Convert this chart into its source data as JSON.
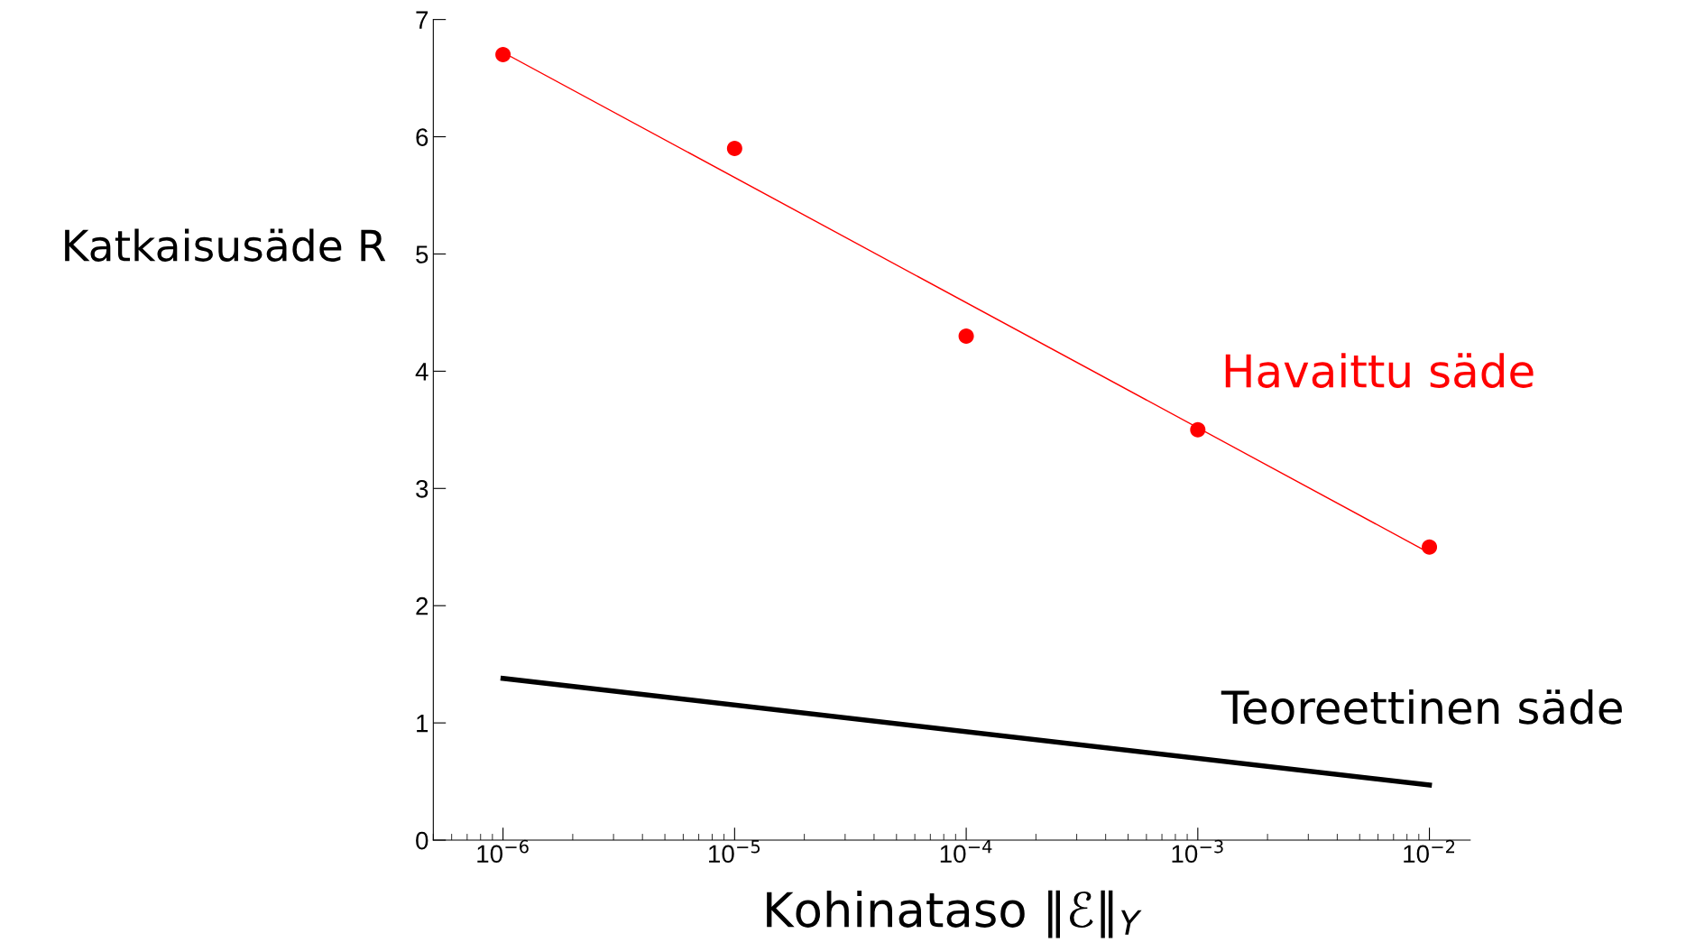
{
  "chart_data": {
    "type": "scatter",
    "xlabel": "Kohinataso ‖ℰ‖$_{Y}$",
    "ylabel": "Katkaisusäde R",
    "log": "x",
    "xlim": [
      5e-07,
      0.015
    ],
    "ylim": [
      0,
      7
    ],
    "xticks": [
      {
        "value": 1e-06,
        "label": "10$^{−6}$"
      },
      {
        "value": 1e-05,
        "label": "10$^{−5}$"
      },
      {
        "value": 0.0001,
        "label": "10$^{−4}$"
      },
      {
        "value": 0.001,
        "label": "10$^{−3}$"
      },
      {
        "value": 0.01,
        "label": "10$^{−2}$"
      }
    ],
    "yticks": [
      0,
      1,
      2,
      3,
      4,
      5,
      6,
      7
    ],
    "grid": false,
    "legend": false,
    "series": [
      {
        "name": "Havaittu säde",
        "color": "#ff0000",
        "marker": "circle",
        "x": [
          1e-06,
          1e-05,
          0.0001,
          0.001,
          0.01
        ],
        "values": [
          6.7,
          5.9,
          4.3,
          3.5,
          2.5
        ]
      },
      {
        "type": "line",
        "color": "#ff0000",
        "line_style": "solid",
        "x": [
          1e-06,
          0.01
        ],
        "values": [
          6.72,
          2.45
        ]
      },
      {
        "name": "Teoreettinen säde",
        "type": "line",
        "color": "#000000",
        "line_style": "solid",
        "x": [
          1e-06,
          0.01
        ],
        "values": [
          1.38,
          0.47
        ]
      }
    ]
  }
}
